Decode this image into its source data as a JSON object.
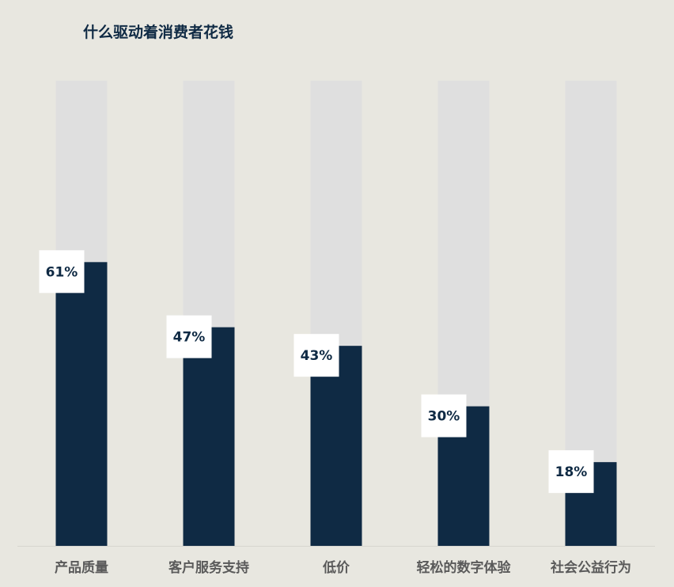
{
  "chart_data": {
    "type": "bar",
    "title": "什么驱动着消费者花钱",
    "categories": [
      "产品质量",
      "客户服务支持",
      "低价",
      "轻松的数字体验",
      "社会公益行为"
    ],
    "values": [
      61,
      47,
      43,
      30,
      18
    ],
    "data_labels": [
      "61%",
      "47%",
      "43%",
      "30%",
      "18%"
    ],
    "ylim": [
      0,
      100
    ],
    "xlabel": "",
    "ylabel": "",
    "grid": false,
    "legend": "none",
    "colors": {
      "background": "#e8e7e0",
      "bar_fill": "#0f2a44",
      "bar_track": "#dfdfdf",
      "label_box": "#ffffff",
      "label_text": "#0f2a44",
      "category_text": "#5a5a5a",
      "baseline": "#d6d5cf"
    }
  }
}
